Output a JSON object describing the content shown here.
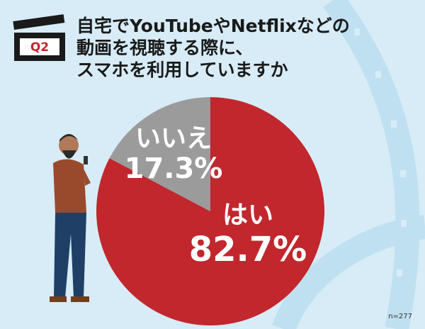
{
  "chart_data": {
    "type": "pie",
    "badge": "Q2",
    "title": [
      "自宅でYouTubeやNetflixなどの",
      "動画を視聴する際に、",
      "スマホを利用していますか"
    ],
    "categories": [
      "はい",
      "いいえ"
    ],
    "values": [
      82.7,
      17.3
    ],
    "value_labels": [
      "82.7%",
      "17.3%"
    ],
    "colors": [
      "#c1272d",
      "#9b9b9b"
    ],
    "note": "n=277"
  }
}
